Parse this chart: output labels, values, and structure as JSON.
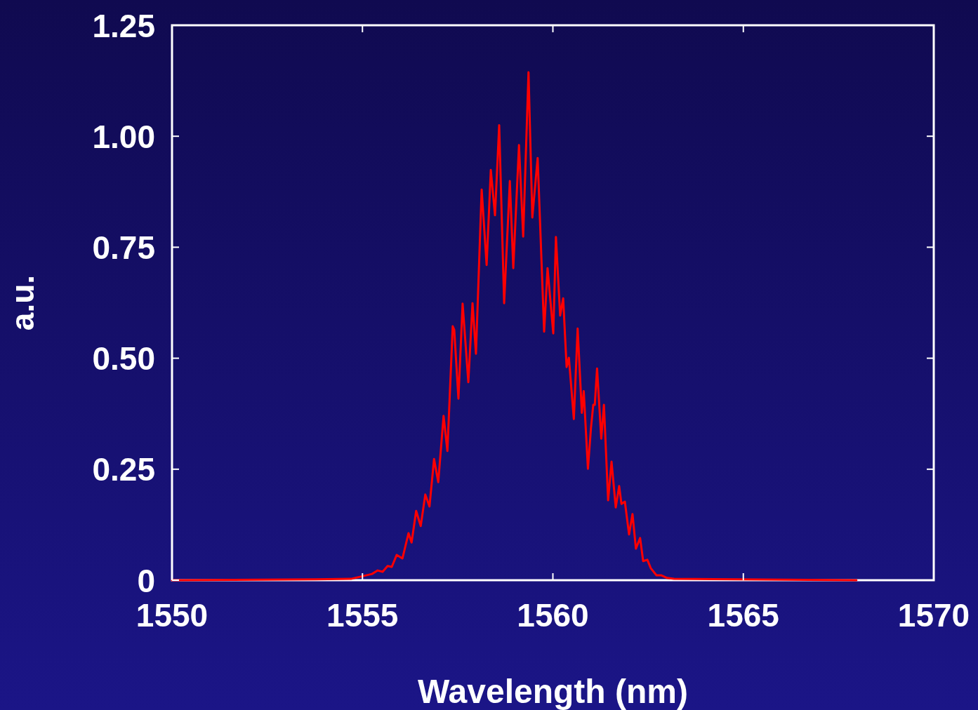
{
  "chart_data": {
    "type": "line",
    "xlabel": "Wavelength (nm)",
    "ylabel": "a.u.",
    "xlim": [
      1550,
      1570
    ],
    "xticks": [
      1550,
      1555,
      1560,
      1565,
      1570
    ],
    "ylim": [
      0,
      1.25
    ],
    "yticks": [
      0,
      0.25,
      {
        "value": 0.5,
        "label": "0.50"
      },
      0.75,
      {
        "value": 1,
        "label": "1.00"
      },
      1.25
    ],
    "marker": "none",
    "line_style": "solid",
    "series": [
      {
        "color": "#ff0000",
        "x": [
          1550,
          1553.78,
          1554.7,
          1555.25,
          1555.4,
          1555.53,
          1555.66,
          1555.77,
          1555.9,
          1556.05,
          1556.21,
          1556.29,
          1556.41,
          1556.53,
          1556.65,
          1556.76,
          1556.88,
          1556.99,
          1557.13,
          1557.23,
          1557.37,
          1557.41,
          1557.52,
          1557.63,
          1557.78,
          1557.89,
          1557.98,
          1558.13,
          1558.26,
          1558.37,
          1558.48,
          1558.59,
          1558.72,
          1558.87,
          1558.96,
          1559.11,
          1559.22,
          1559.36,
          1559.46,
          1559.6,
          1559.77,
          1559.86,
          1560.01,
          1560.08,
          1560.19,
          1560.27,
          1560.36,
          1560.42,
          1560.55,
          1560.65,
          1560.76,
          1560.81,
          1560.92,
          1561,
          1561.06,
          1561.1,
          1561.16,
          1561.27,
          1561.34,
          1561.45,
          1561.54,
          1561.65,
          1561.74,
          1561.8,
          1561.89,
          1562,
          1562.09,
          1562.18,
          1562.29,
          1562.37,
          1562.48,
          1562.57,
          1562.72,
          1562.85,
          1563,
          1563.18,
          1567.97
        ],
        "values": [
          0,
          0.002,
          0.003,
          0.014,
          0.022,
          0.019,
          0.032,
          0.03,
          0.057,
          0.049,
          0.106,
          0.085,
          0.156,
          0.122,
          0.193,
          0.166,
          0.273,
          0.221,
          0.37,
          0.291,
          0.572,
          0.564,
          0.409,
          0.623,
          0.446,
          0.624,
          0.51,
          0.88,
          0.71,
          0.924,
          0.822,
          1.025,
          0.624,
          0.899,
          0.703,
          0.98,
          0.774,
          1.144,
          0.817,
          0.951,
          0.56,
          0.703,
          0.556,
          0.773,
          0.596,
          0.635,
          0.48,
          0.501,
          0.363,
          0.567,
          0.377,
          0.426,
          0.251,
          0.343,
          0.395,
          0.395,
          0.477,
          0.319,
          0.395,
          0.18,
          0.267,
          0.164,
          0.212,
          0.172,
          0.177,
          0.103,
          0.149,
          0.071,
          0.095,
          0.043,
          0.046,
          0.027,
          0.011,
          0.011,
          0.005,
          0.003,
          0
        ]
      }
    ]
  }
}
